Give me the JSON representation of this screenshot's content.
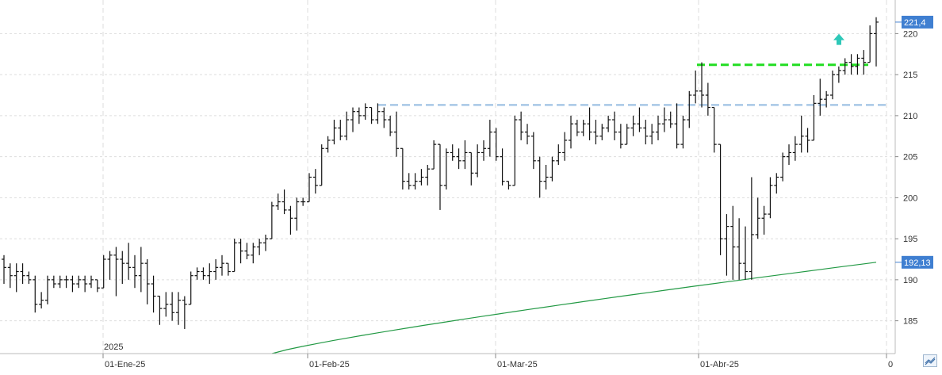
{
  "chart_data": {
    "type": "ohlc",
    "year_label": "2025",
    "y_axis": {
      "ticks": [
        185,
        190,
        195,
        200,
        205,
        210,
        215,
        220
      ],
      "range": [
        181,
        224
      ],
      "side": "right"
    },
    "x_axis": {
      "labels": [
        "01-Ene-25",
        "01-Feb-25",
        "01-Mar-25",
        "01-Abr-25",
        "0"
      ]
    },
    "last_price": {
      "label": "221,4",
      "value": 221.4,
      "color": "#3f7fd1"
    },
    "ma_value": {
      "label": "192,13",
      "value": 192.13,
      "color": "#3f7fd1"
    },
    "resistance_blue": {
      "value": 211.3,
      "color": "#a8c8e6",
      "style": "dashed"
    },
    "resistance_green": {
      "value": 216.2,
      "color": "#22dd22",
      "style": "dashed"
    },
    "signal_arrow": {
      "direction": "up",
      "color": "#2ec8b8"
    },
    "moving_average": {
      "color": "#229944",
      "start": 181.0,
      "end": 192.13
    },
    "grid": true,
    "bars": [
      [
        192.5,
        193,
        189.5,
        191.5
      ],
      [
        191.5,
        192,
        189,
        190.5
      ],
      [
        190.5,
        192,
        188.5,
        191
      ],
      [
        191,
        192,
        189.5,
        190.5
      ],
      [
        190.5,
        191,
        189.5,
        190
      ],
      [
        190,
        190.5,
        186,
        187
      ],
      [
        187,
        188.5,
        186.5,
        187.5
      ],
      [
        187.5,
        190.5,
        187,
        190
      ],
      [
        190,
        190.5,
        189,
        189.5
      ],
      [
        189.5,
        190.5,
        189,
        190
      ],
      [
        190,
        190.5,
        189,
        190
      ],
      [
        190,
        190.5,
        188.5,
        189.5
      ],
      [
        189.5,
        190.5,
        189,
        190
      ],
      [
        190,
        190.5,
        188.5,
        189.5
      ],
      [
        189.5,
        190.5,
        189,
        190
      ],
      [
        190,
        190,
        188.5,
        189
      ],
      [
        189,
        193,
        189,
        192.5
      ],
      [
        192.5,
        193.5,
        190,
        193
      ],
      [
        193,
        194,
        188,
        192.5
      ],
      [
        192.5,
        193.5,
        189.5,
        192
      ],
      [
        192,
        194.5,
        190,
        191.5
      ],
      [
        191.5,
        193,
        189,
        190.5
      ],
      [
        190.5,
        194,
        188.5,
        192
      ],
      [
        192,
        192.5,
        187,
        189.5
      ],
      [
        189.5,
        190.5,
        186,
        188
      ],
      [
        188,
        188,
        184.5,
        186.5
      ],
      [
        186.5,
        188.5,
        185.5,
        187
      ],
      [
        187,
        188.5,
        185,
        186
      ],
      [
        186,
        188.5,
        184.5,
        187.5
      ],
      [
        187.5,
        188,
        184,
        187
      ],
      [
        187,
        191,
        187,
        190.5
      ],
      [
        190.5,
        191.5,
        190,
        191
      ],
      [
        191,
        191.5,
        190,
        190.5
      ],
      [
        190.5,
        192,
        189.5,
        191
      ],
      [
        191,
        192.5,
        190,
        191.5
      ],
      [
        191.5,
        193,
        190.5,
        192
      ],
      [
        192,
        192,
        190.5,
        191
      ],
      [
        191,
        195,
        191,
        194.5
      ],
      [
        194.5,
        195,
        192,
        193.5
      ],
      [
        193.5,
        194.5,
        192.5,
        193
      ],
      [
        193,
        194.5,
        192,
        194
      ],
      [
        194,
        195,
        193,
        194.5
      ],
      [
        194.5,
        195.5,
        193.5,
        195
      ],
      [
        195,
        199.5,
        195,
        199
      ],
      [
        199,
        200.5,
        198.5,
        199.5
      ],
      [
        199.5,
        201,
        198,
        198.5
      ],
      [
        198.5,
        199,
        195.5,
        197.5
      ],
      [
        197.5,
        200,
        196,
        199.5
      ],
      [
        199.5,
        200,
        199,
        199.5
      ],
      [
        199.5,
        203,
        199.5,
        202.5
      ],
      [
        202.5,
        203.5,
        200.5,
        201.5
      ],
      [
        201.5,
        206.5,
        201.5,
        206
      ],
      [
        206,
        207.5,
        205.5,
        207
      ],
      [
        207,
        209.5,
        206.5,
        208.5
      ],
      [
        208.5,
        209.5,
        207,
        207.5
      ],
      [
        207.5,
        210.5,
        207,
        209.5
      ],
      [
        209.5,
        211,
        208,
        210.5
      ],
      [
        210.5,
        211,
        209,
        210
      ],
      [
        210,
        211.5,
        209.5,
        211
      ],
      [
        211,
        211,
        209,
        209.5
      ],
      [
        209.5,
        211.5,
        209,
        210.5
      ],
      [
        210.5,
        211,
        208.5,
        209.5
      ],
      [
        209.5,
        210,
        207.5,
        208
      ],
      [
        208,
        210.5,
        205,
        206
      ],
      [
        206,
        206,
        201,
        202
      ],
      [
        202,
        203,
        201,
        201.5
      ],
      [
        201.5,
        203,
        201,
        202
      ],
      [
        202,
        203.5,
        201.5,
        202.5
      ],
      [
        202.5,
        204,
        201.5,
        203.5
      ],
      [
        203.5,
        207,
        203.5,
        206.5
      ],
      [
        206.5,
        206.5,
        198.5,
        201.5
      ],
      [
        201.5,
        206,
        201,
        205.5
      ],
      [
        205.5,
        206.5,
        204.5,
        205
      ],
      [
        205,
        206,
        203.5,
        204.5
      ],
      [
        204.5,
        207,
        203.5,
        205.5
      ],
      [
        205.5,
        205.5,
        201.5,
        203
      ],
      [
        203,
        206.5,
        202.5,
        205.5
      ],
      [
        205.5,
        207,
        204.5,
        206
      ],
      [
        206,
        209.5,
        205,
        208
      ],
      [
        208,
        208.5,
        204.5,
        205
      ],
      [
        205,
        206,
        201.5,
        202
      ],
      [
        202,
        202,
        201,
        201.5
      ],
      [
        201.5,
        210,
        201.5,
        209.5
      ],
      [
        209.5,
        210.5,
        207,
        208
      ],
      [
        208,
        209,
        206.5,
        207.5
      ],
      [
        207.5,
        208,
        203.5,
        204.5
      ],
      [
        204.5,
        205,
        200,
        202
      ],
      [
        202,
        204,
        201,
        202.5
      ],
      [
        202.5,
        205,
        202,
        204.5
      ],
      [
        204.5,
        206.5,
        204,
        205.5
      ],
      [
        205.5,
        208,
        204.5,
        207
      ],
      [
        207,
        210,
        206,
        209
      ],
      [
        209,
        209.5,
        207.5,
        208
      ],
      [
        208,
        209.5,
        207.5,
        209
      ],
      [
        209,
        211,
        207,
        208
      ],
      [
        208,
        209.5,
        206.5,
        207.5
      ],
      [
        207.5,
        209,
        207,
        208.5
      ],
      [
        208.5,
        210,
        208,
        209.5
      ],
      [
        209.5,
        210.5,
        207,
        208
      ],
      [
        208,
        209,
        206,
        206.5
      ],
      [
        206.5,
        209,
        206.5,
        208.5
      ],
      [
        208.5,
        210,
        207.5,
        209
      ],
      [
        209,
        211,
        208,
        208.5
      ],
      [
        208.5,
        209.5,
        206.5,
        207.5
      ],
      [
        207.5,
        209,
        206.5,
        208
      ],
      [
        208,
        210,
        207,
        209
      ],
      [
        209,
        211,
        208,
        209.5
      ],
      [
        209.5,
        210.5,
        208.5,
        209
      ],
      [
        209,
        211.5,
        206,
        206.5
      ],
      [
        206.5,
        210,
        206,
        209.5
      ],
      [
        209.5,
        213,
        208.5,
        212.5
      ],
      [
        212.5,
        215.5,
        211.5,
        213
      ],
      [
        213,
        216.5,
        211,
        212.5
      ],
      [
        212.5,
        214,
        210,
        211
      ],
      [
        211,
        211,
        205.5,
        206.5
      ],
      [
        206.5,
        206.5,
        193,
        195
      ],
      [
        195,
        198,
        190.5,
        196.5
      ],
      [
        196.5,
        199,
        190,
        194
      ],
      [
        194,
        197.5,
        190,
        192
      ],
      [
        192,
        196.5,
        190,
        191
      ],
      [
        191,
        202.5,
        190,
        195.5
      ],
      [
        195.5,
        200,
        195,
        197.5
      ],
      [
        197.5,
        199,
        195.5,
        198
      ],
      [
        198,
        202.5,
        197.5,
        201.5
      ],
      [
        201.5,
        203,
        200.5,
        202.5
      ],
      [
        202.5,
        205.5,
        202,
        205
      ],
      [
        205,
        206.5,
        204,
        205.5
      ],
      [
        205.5,
        207.5,
        204.5,
        206.5
      ],
      [
        206.5,
        210,
        205.5,
        207.5
      ],
      [
        207.5,
        208.5,
        205.5,
        207
      ],
      [
        207,
        212.5,
        207,
        211.5
      ],
      [
        211.5,
        214.5,
        210,
        212
      ],
      [
        212,
        213,
        211,
        212.5
      ],
      [
        212.5,
        215.5,
        212,
        215
      ],
      [
        215,
        216,
        214,
        215.5
      ],
      [
        215.5,
        217,
        215,
        216.5
      ],
      [
        216.5,
        217.5,
        215,
        216
      ],
      [
        216,
        217.5,
        215,
        217
      ],
      [
        217,
        218,
        215,
        216.5
      ],
      [
        216.5,
        221,
        216.5,
        220
      ],
      [
        220,
        222,
        216,
        221.4
      ]
    ]
  },
  "ui": {
    "corner_button_icon": "chart-toggle-icon"
  }
}
